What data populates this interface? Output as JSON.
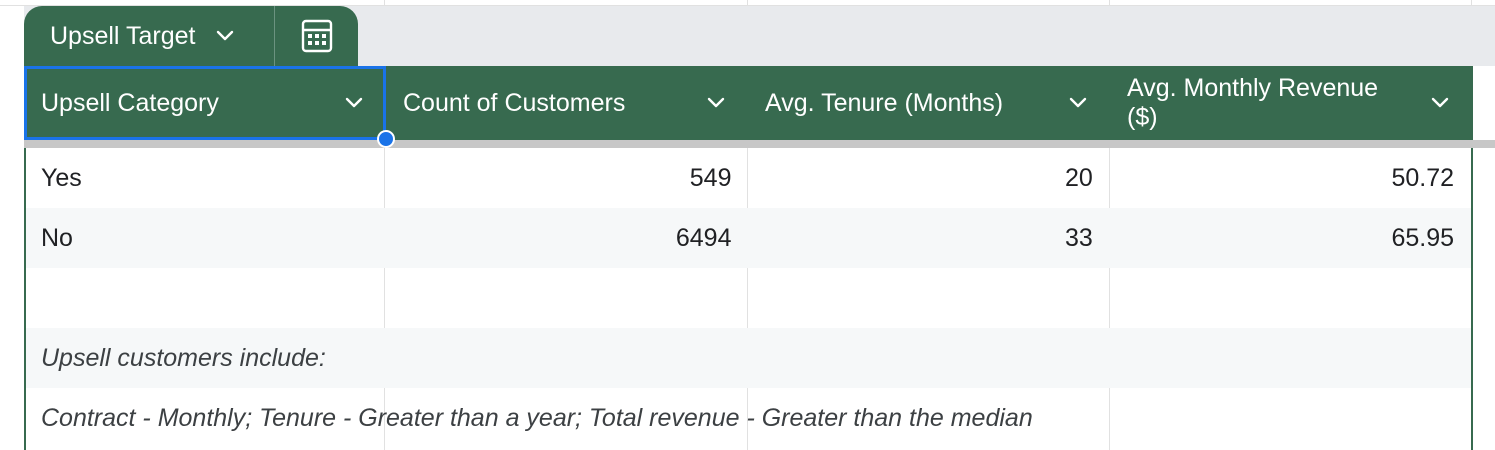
{
  "table": {
    "name": "Upsell Target",
    "columns": [
      {
        "label": "Upsell Category"
      },
      {
        "label": "Count of Customers"
      },
      {
        "label": "Avg. Tenure (Months)"
      },
      {
        "label": "Avg. Monthly Revenue ($)"
      }
    ],
    "rows": [
      {
        "category": "Yes",
        "count": "549",
        "tenure": "20",
        "revenue": "50.72"
      },
      {
        "category": "No",
        "count": "6494",
        "tenure": "33",
        "revenue": "65.95"
      }
    ],
    "notes": [
      "Upsell customers include:",
      "Contract - Monthly; Tenure - Greater than a year; Total revenue - Greater than the median"
    ]
  },
  "icons": {
    "tab_dropdown": "chevron-down-icon",
    "calculator": "calculator-icon",
    "column_dropdown": "chevron-down-icon"
  },
  "colors": {
    "header_bg": "#376a4f",
    "selection": "#1a73e8",
    "tab_strip": "#e8eaed"
  }
}
